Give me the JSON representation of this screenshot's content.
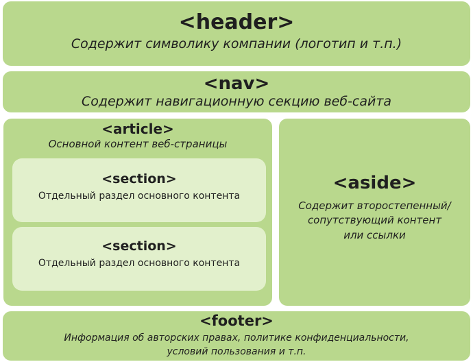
{
  "header": {
    "tag": "<header>",
    "description": "Содержит символику компании (логотип и т.п.)"
  },
  "nav": {
    "tag": "<nav>",
    "description": "Содержит навигационную секцию веб-сайта"
  },
  "article": {
    "tag": "<article>",
    "description": "Основной контент веб-страницы",
    "sections": [
      {
        "tag": "<section>",
        "description": "Отдельный раздел основного контента"
      },
      {
        "tag": "<section>",
        "description": "Отдельный раздел основного контента"
      }
    ]
  },
  "aside": {
    "tag": "<aside>",
    "description_lines": [
      "Содержит второстепенный/",
      "сопутствующий контент",
      "или ссылки"
    ]
  },
  "footer": {
    "tag": "<footer>",
    "description_lines": [
      "Информация об авторских правах, политике конфиденциальности,",
      "условий пользования и т.п."
    ]
  },
  "colors": {
    "outer_block": "#b9d88d",
    "inner_block": "#e2f0cc",
    "text": "#1f1f1f"
  }
}
